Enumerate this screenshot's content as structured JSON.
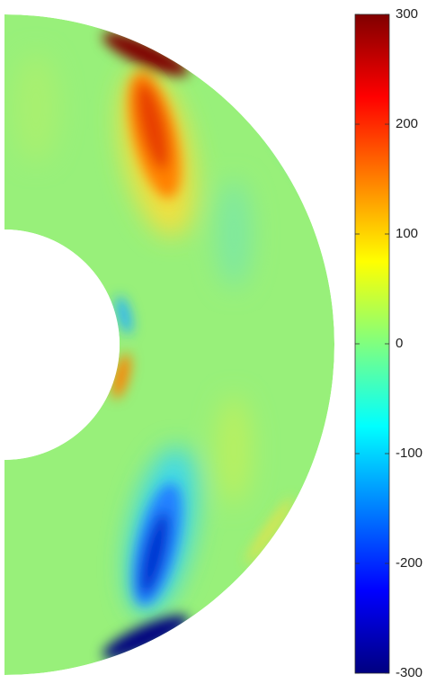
{
  "chart_data": {
    "type": "contour",
    "colormap": "jet",
    "clim": [
      -300,
      300
    ],
    "cticks": [
      -300,
      -200,
      -100,
      0,
      100,
      200,
      300
    ]
  }
}
